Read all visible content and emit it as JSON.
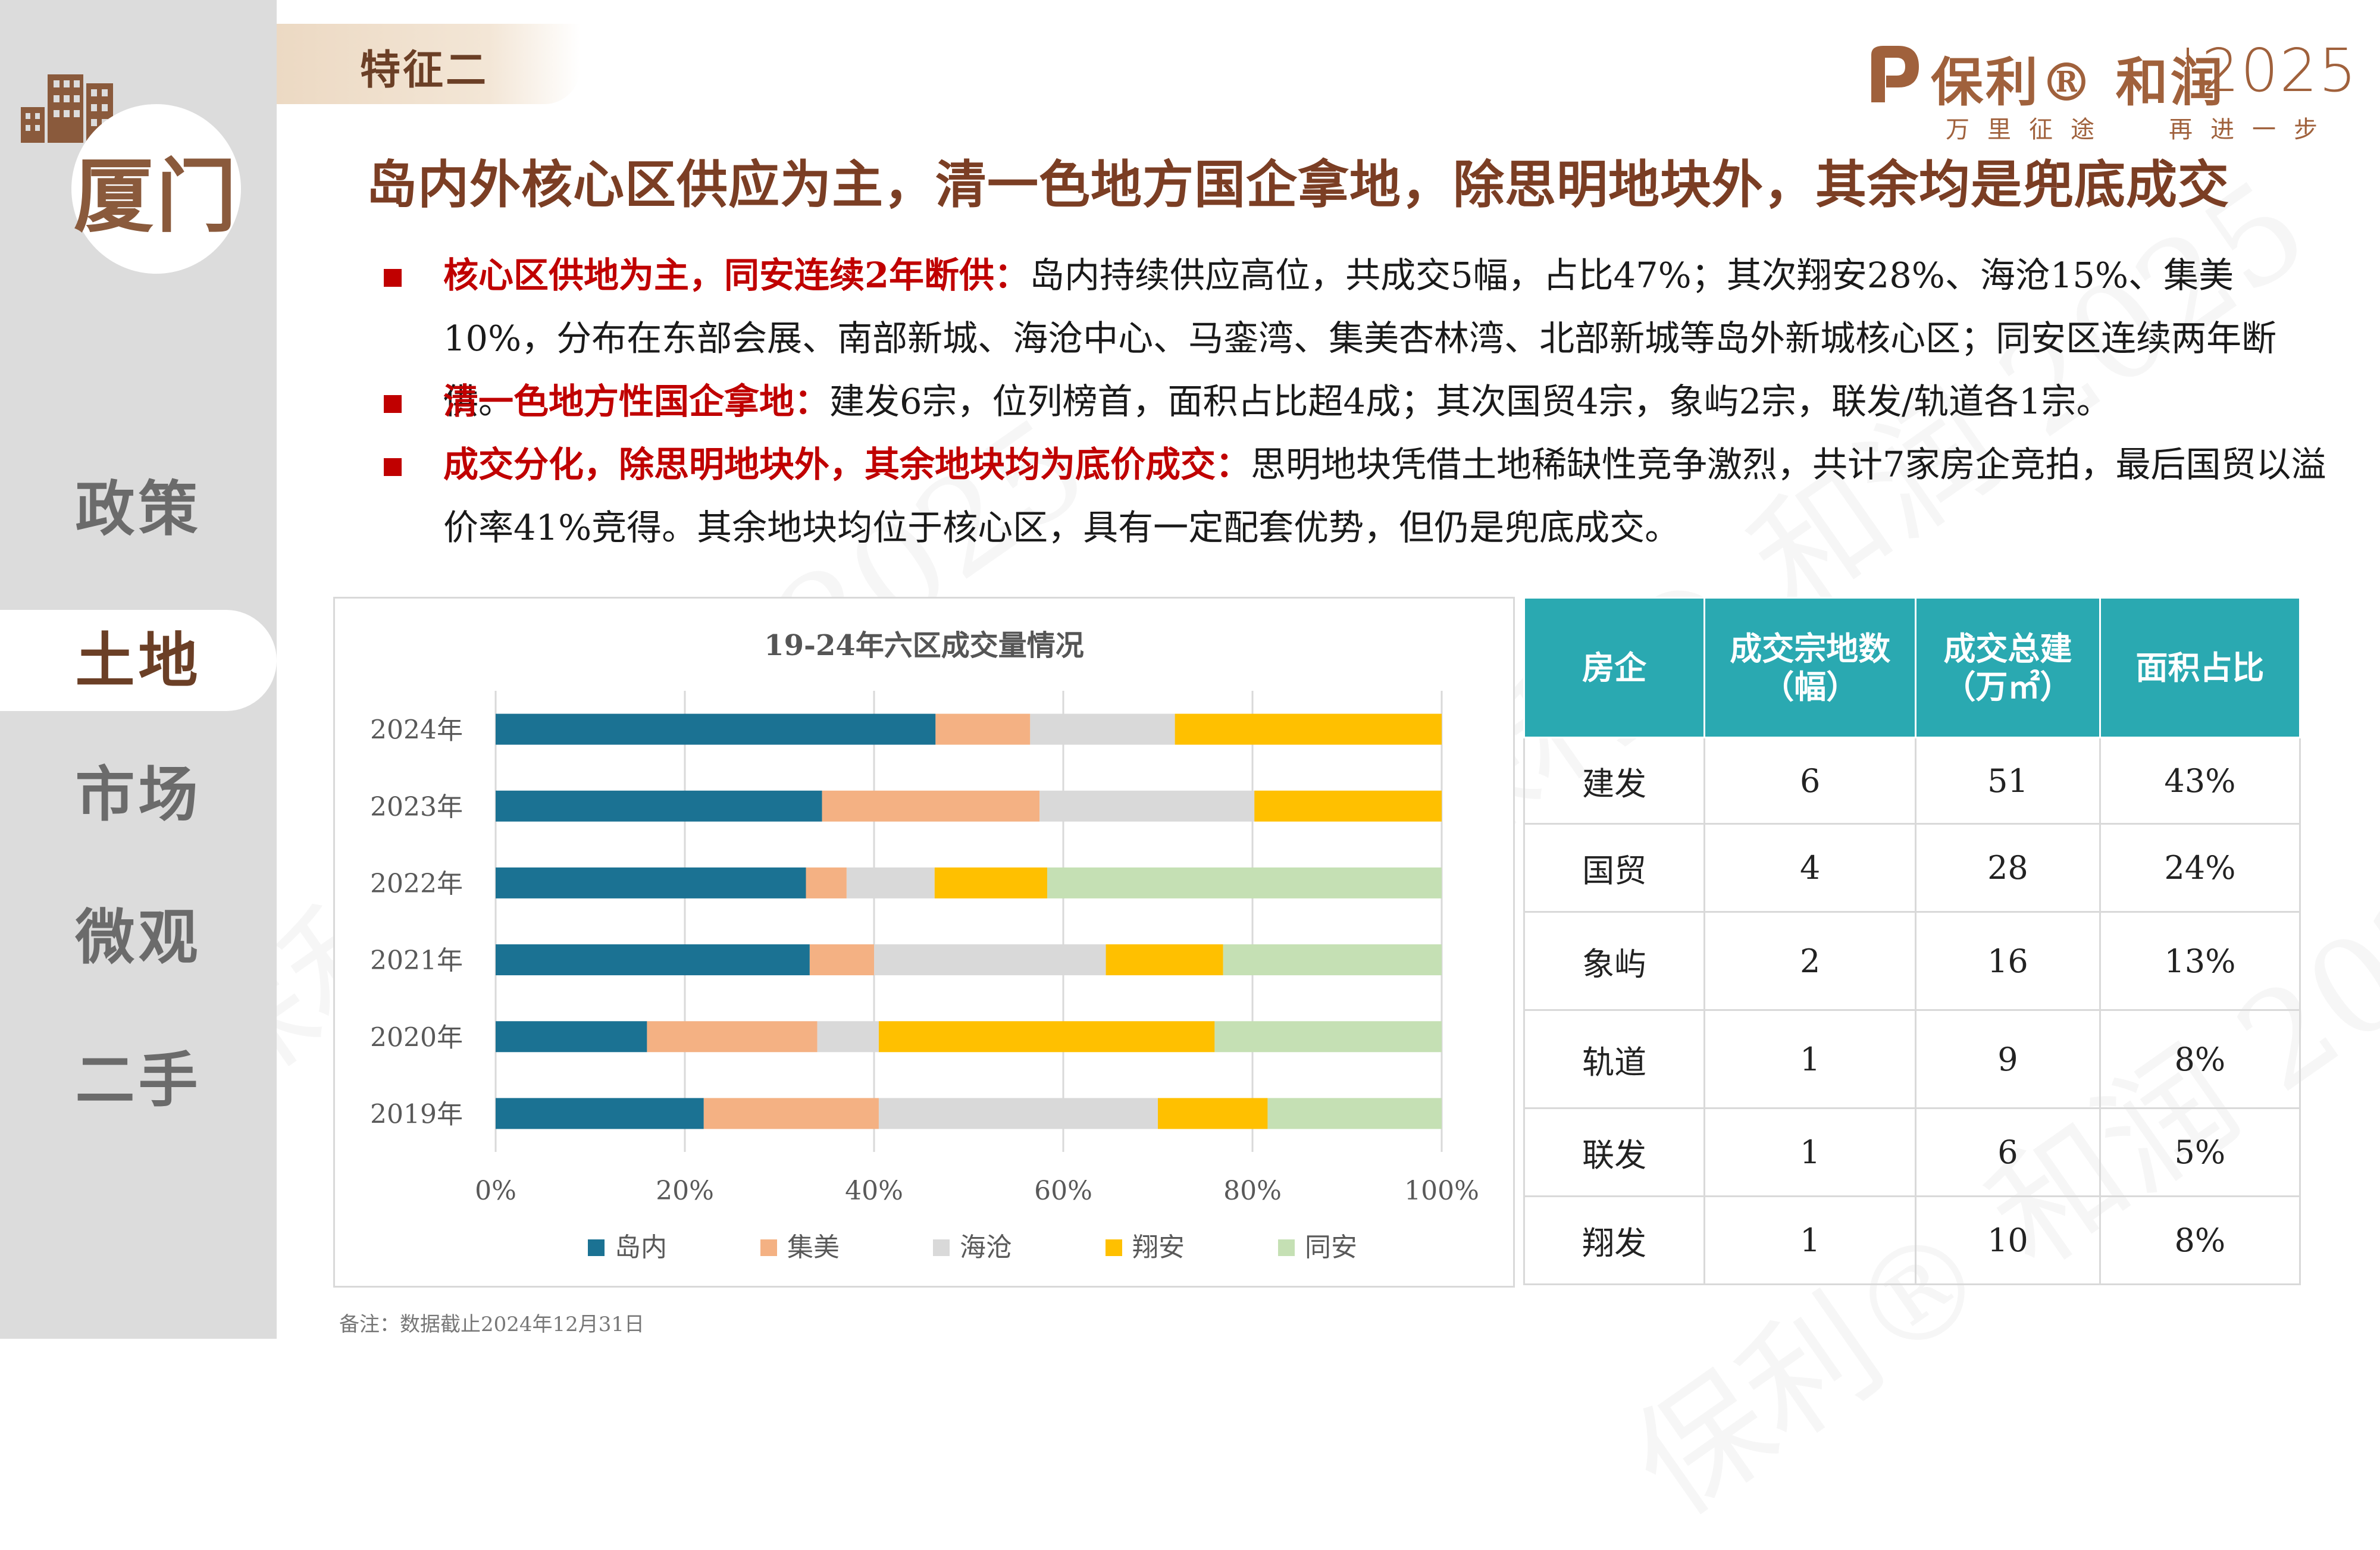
{
  "sidebar": {
    "city": "厦门",
    "nav": [
      "政策",
      "土地",
      "市场",
      "微观",
      "二手"
    ],
    "active": "土地"
  },
  "header": {
    "badge": "特征二",
    "title": "岛内外核心区供应为主，清一色地方国企拿地，除思明地块外，其余均是兜底成交"
  },
  "logo": {
    "brand": "保利® 和润",
    "year": "2025",
    "slogan_left": "万里征途",
    "slogan_right": "再进一步"
  },
  "bullets": [
    {
      "highlight": "核心区供地为主，同安连续2年断供：",
      "text": "岛内持续供应高位，共成交5幅，占比47%；其次翔安28%、海沧15%、集美10%，分布在东部会展、南部新城、海沧中心、马銮湾、集美杏林湾、北部新城等岛外新城核心区；同安区连续两年断供。"
    },
    {
      "highlight": "清一色地方性国企拿地：",
      "text": "建发6宗，位列榜首，面积占比超4成；其次国贸4宗，象屿2宗，联发/轨道各1宗。"
    },
    {
      "highlight": "成交分化，除思明地块外，其余地块均为底价成交：",
      "text": "思明地块凭借土地稀缺性竞争激烈，共计7家房企竞拍，最后国贸以溢价率41%竞得。其余地块均位于核心区，具有一定配套优势，但仍是兜底成交。"
    }
  ],
  "chart_data": {
    "type": "bar",
    "orientation": "horizontal",
    "stacked": "percent",
    "title": "19-24年六区成交量情况",
    "categories": [
      "2024年",
      "2023年",
      "2022年",
      "2021年",
      "2020年",
      "2019年"
    ],
    "series": [
      {
        "name": "岛内",
        "color": "#1b7293",
        "values": [
          46.5,
          34.5,
          32.8,
          33.2,
          16,
          22
        ]
      },
      {
        "name": "集美",
        "color": "#f4b183",
        "values": [
          10,
          23,
          4.3,
          6.8,
          18,
          18.5
        ]
      },
      {
        "name": "海沧",
        "color": "#d9d9d9",
        "values": [
          15.3,
          22.7,
          9.3,
          24.5,
          6.5,
          29.5
        ]
      },
      {
        "name": "翔安",
        "color": "#ffc000",
        "values": [
          28.2,
          19.8,
          11.9,
          12.4,
          35.5,
          11.6
        ]
      },
      {
        "name": "同安",
        "color": "#c5e0b4",
        "values": [
          0,
          0,
          41.7,
          23.1,
          24,
          18.4
        ]
      }
    ],
    "xlim": [
      0,
      100
    ],
    "xticks": [
      "0%",
      "20%",
      "40%",
      "60%",
      "80%",
      "100%"
    ],
    "legend": "bottom",
    "grid": true
  },
  "table": {
    "headers": [
      "房企",
      "成交宗地数（幅）",
      "成交总建（万㎡）",
      "面积占比"
    ],
    "rows": [
      [
        "建发",
        "6",
        "51",
        "43%"
      ],
      [
        "国贸",
        "4",
        "28",
        "24%"
      ],
      [
        "象屿",
        "2",
        "16",
        "13%"
      ],
      [
        "轨道",
        "1",
        "9",
        "8%"
      ],
      [
        "联发",
        "1",
        "6",
        "5%"
      ],
      [
        "翔发",
        "1",
        "10",
        "8%"
      ]
    ]
  },
  "note": "备注：数据截止2024年12月31日",
  "colors": {
    "accent": "#7b3e24",
    "highlight": "#c00000",
    "table_header": "#2aa9b1"
  }
}
